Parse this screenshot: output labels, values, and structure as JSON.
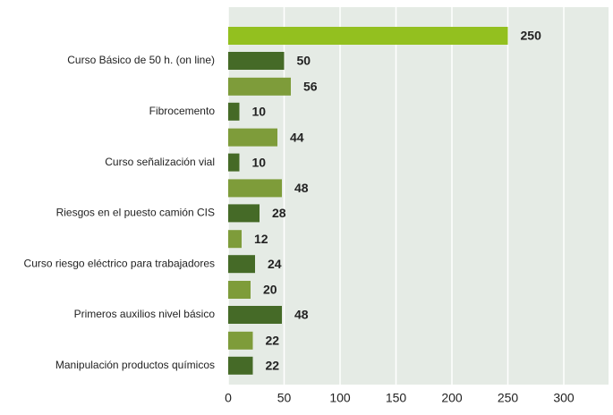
{
  "chart_data": {
    "type": "grouped_hbar",
    "categories": [
      "Curso Básico de 50 h. (on line)",
      "Fibrocemento",
      "Curso señalización vial",
      "Riesgos en el puesto camión CIS",
      "Curso riesgo eléctrico para trabajadores",
      "Primeros auxilios nivel básico",
      "Manipulación productos químicos"
    ],
    "series": [
      {
        "color": "#7e9c3a",
        "colors": [
          "#93c01f",
          "#7e9c3a",
          "#7e9c3a",
          "#7e9c3a",
          "#7e9c3a",
          "#7e9c3a",
          "#7e9c3a"
        ],
        "values": [
          250,
          56,
          44,
          48,
          12,
          20,
          22
        ]
      },
      {
        "color": "#456a27",
        "values": [
          50,
          10,
          10,
          28,
          24,
          48,
          22
        ]
      }
    ],
    "xlim": [
      0,
      340
    ],
    "xticks": [
      0,
      50,
      100,
      150,
      200,
      250,
      300
    ],
    "grid": true
  }
}
